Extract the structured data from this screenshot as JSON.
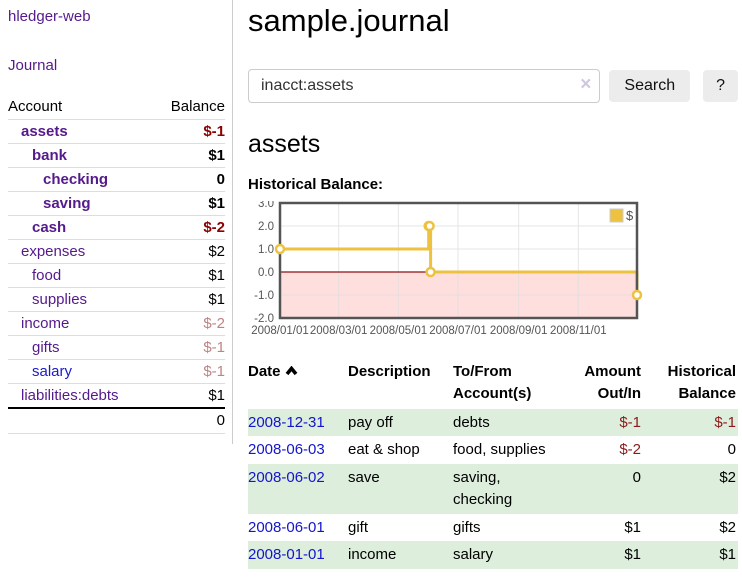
{
  "brand": "hledger-web",
  "sidebar": {
    "journal_link": "Journal",
    "table": {
      "col_account": "Account",
      "col_balance": "Balance",
      "rows": [
        {
          "name": "assets",
          "balance": "$-1"
        },
        {
          "name": "bank",
          "balance": "$1"
        },
        {
          "name": "checking",
          "balance": "0"
        },
        {
          "name": "saving",
          "balance": "$1"
        },
        {
          "name": "cash",
          "balance": "$-2"
        },
        {
          "name": "expenses",
          "balance": "$2"
        },
        {
          "name": "food",
          "balance": "$1"
        },
        {
          "name": "supplies",
          "balance": "$1"
        },
        {
          "name": "income",
          "balance": "$-2"
        },
        {
          "name": "gifts",
          "balance": "$-1"
        },
        {
          "name": "salary",
          "balance": "$-1"
        },
        {
          "name": "liabilities:debts",
          "balance": "$1"
        }
      ],
      "total": "0"
    }
  },
  "header": {
    "title": "sample.journal"
  },
  "search": {
    "value": "inacct:assets",
    "clear_icon": "×",
    "search_label": "Search",
    "help_label": "?"
  },
  "account": {
    "heading": "assets",
    "chart_label": "Historical Balance:"
  },
  "chart_data": {
    "type": "line",
    "step": true,
    "title": "Historical Balance",
    "series": [
      {
        "name": "$",
        "color": "#edc240",
        "points": [
          [
            "2008-01-01",
            1
          ],
          [
            "2008-06-01",
            2
          ],
          [
            "2008-06-02",
            2
          ],
          [
            "2008-06-03",
            0
          ],
          [
            "2008-12-31",
            -1
          ]
        ]
      }
    ],
    "x_ticks": [
      "2008/01/01",
      "2008/03/01",
      "2008/05/01",
      "2008/07/01",
      "2008/09/01",
      "2008/11/01"
    ],
    "y_ticks": [
      "3.0",
      "2.0",
      "1.0",
      "0.0",
      "-1.0",
      "-2.0"
    ],
    "xlim": [
      "2008-01-01",
      "2008-12-31"
    ],
    "ylim": [
      -2,
      3
    ],
    "grid": true,
    "legend_position": "top-right",
    "legend_label": "$",
    "colors": {
      "line": "#edc240",
      "negative_region": "#ffdede",
      "zero_line": "#8e1111",
      "border": "#545454",
      "gridline": "#dddddd",
      "tick_text": "#545454",
      "legend_box_border": "#cccccc"
    }
  },
  "register": {
    "headers": {
      "date": "Date",
      "description": "Description",
      "to_from": "To/From Account(s)",
      "amount": "Amount Out/In",
      "balance": "Historical Balance"
    },
    "rows": [
      {
        "date": "2008-12-31",
        "description": "pay off",
        "to_from": "debts",
        "amount": "$-1",
        "balance": "$-1"
      },
      {
        "date": "2008-06-03",
        "description": "eat & shop",
        "to_from": "food, supplies",
        "amount": "$-2",
        "balance": "0"
      },
      {
        "date": "2008-06-02",
        "description": "save",
        "to_from": "saving, checking",
        "amount": "0",
        "balance": "$2"
      },
      {
        "date": "2008-06-01",
        "description": "gift",
        "to_from": "gifts",
        "amount": "$1",
        "balance": "$2"
      },
      {
        "date": "2008-01-01",
        "description": "income",
        "to_from": "salary",
        "amount": "$1",
        "balance": "$1"
      }
    ]
  }
}
